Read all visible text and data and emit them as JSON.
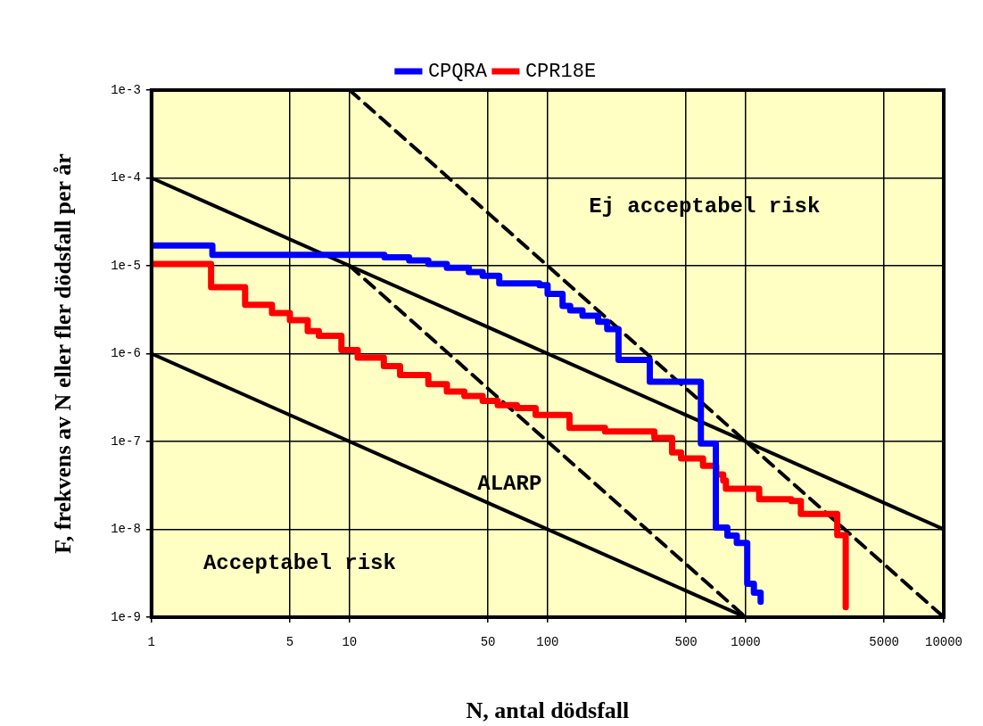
{
  "chart_data": {
    "type": "line",
    "xlabel": "N, antal dödsfall",
    "ylabel": "F, frekvens av N eller fler dödsfall per år",
    "log": "xy",
    "grid": true,
    "legend": "top",
    "marker": "none",
    "xlim": [
      1,
      10000
    ],
    "xticks": [
      1,
      5,
      10,
      50,
      100,
      500,
      1000,
      5000,
      10000
    ],
    "ylim": [
      1e-09,
      0.001
    ],
    "yticks": [
      {
        "value": 1e-09,
        "label": "1e-9"
      },
      {
        "value": 1e-08,
        "label": "1e-8"
      },
      {
        "value": 1e-07,
        "label": "1e-7"
      },
      {
        "value": 1e-06,
        "label": "1e-6"
      },
      {
        "value": 1e-05,
        "label": "1e-5"
      },
      {
        "value": 0.0001,
        "label": "1e-4"
      },
      {
        "value": 0.001,
        "label": "1e-3"
      }
    ],
    "annotations": [
      "Ej acceptabel risk",
      "ALARP",
      "Acceptabel risk"
    ],
    "series": [
      {
        "name": "CPQRA",
        "type": "step",
        "color": "#0000ff",
        "x": [
          1,
          2.03,
          15,
          20,
          25,
          31,
          40,
          47,
          57,
          91,
          100,
          119,
          130,
          150,
          180,
          200,
          228,
          328,
          594,
          707,
          808,
          902,
          1018,
          1100,
          1190
        ],
        "values": [
          1.7e-05,
          1.33e-05,
          1.25e-05,
          1.15e-05,
          1.05e-05,
          9.5e-06,
          8.5e-06,
          7.7e-06,
          6.3e-06,
          6e-06,
          4.8e-06,
          3.5e-06,
          3.1e-06,
          2.7e-06,
          2.3e-06,
          1.9e-06,
          8.5e-07,
          4.8e-07,
          9.5e-08,
          1.05e-08,
          8.5e-09,
          7e-09,
          2.4e-09,
          1.9e-09,
          1.5e-09
        ]
      },
      {
        "name": "CPR18E",
        "type": "step",
        "color": "#ff0000",
        "x": [
          1,
          2,
          2.97,
          4.06,
          5,
          6.15,
          7,
          9.1,
          11,
          14.9,
          18,
          25,
          31,
          38,
          47,
          56,
          70,
          87,
          129,
          195,
          346,
          425,
          472,
          609,
          710,
          770,
          795,
          1170,
          1700,
          1900,
          2900,
          3200
        ],
        "values": [
          1.05e-05,
          5.7e-06,
          3.6e-06,
          2.9e-06,
          2.4e-06,
          1.8e-06,
          1.6e-06,
          1.1e-06,
          9e-07,
          7.2e-07,
          5.7e-07,
          4.5e-07,
          3.7e-07,
          3.3e-07,
          2.9e-07,
          2.6e-07,
          2.4e-07,
          2e-07,
          1.43e-07,
          1.3e-07,
          1.1e-07,
          7.5e-08,
          6.4e-08,
          5.3e-08,
          4.2e-08,
          3.6e-08,
          2.9e-08,
          2.2e-08,
          2.1e-08,
          1.5e-08,
          8.6e-09,
          1.3e-09
        ]
      },
      {
        "type": "line",
        "color": "#000000",
        "line_style": "solid",
        "x": [
          1,
          10000
        ],
        "values": [
          0.0001,
          1e-08
        ]
      },
      {
        "type": "line",
        "color": "#000000",
        "line_style": "solid",
        "x": [
          1,
          1000
        ],
        "values": [
          1e-06,
          1e-09
        ]
      },
      {
        "type": "line",
        "color": "#000000",
        "line_style": "dashed",
        "x": [
          10,
          10000
        ],
        "values": [
          0.001,
          1e-09
        ]
      },
      {
        "type": "line",
        "color": "#000000",
        "line_style": "dashed",
        "x": [
          10,
          1000
        ],
        "values": [
          1e-05,
          1e-09
        ]
      }
    ]
  }
}
